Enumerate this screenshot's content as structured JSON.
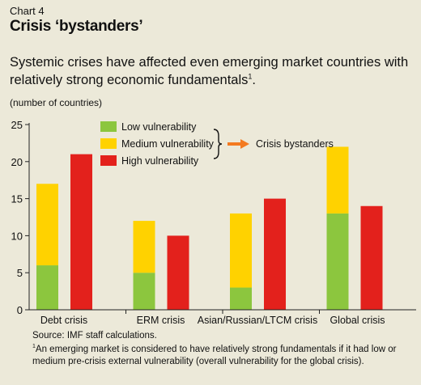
{
  "header": {
    "chart_number": "Chart 4",
    "title": "Crisis ‘bystanders’",
    "subtitle": "Systemic crises have affected even emerging market countries with relatively strong economic fundamentals",
    "subtitle_note_mark": "1",
    "subtitle_end": "."
  },
  "colors": {
    "low": "#8cc63e",
    "medium": "#ffd200",
    "high": "#e3211c",
    "arrow": "#f47a20",
    "background": "#ece9d9"
  },
  "chart_data": {
    "type": "bar",
    "stacked_groups": true,
    "categories": [
      "Debt crisis",
      "ERM crisis",
      "Asian/Russian/LTCM crisis",
      "Global crisis"
    ],
    "series": [
      {
        "name": "Low vulnerability",
        "values": [
          6,
          5,
          3,
          13
        ]
      },
      {
        "name": "Medium vulnerability",
        "values": [
          11,
          7,
          10,
          9
        ]
      },
      {
        "name": "High vulnerability",
        "values": [
          21,
          10,
          15,
          14
        ]
      }
    ],
    "bystanders_label": "Crisis bystanders",
    "ylabel": "(number of countries)",
    "ylim": [
      0,
      25
    ],
    "yticks": [
      0,
      5,
      10,
      15,
      20,
      25
    ],
    "grid": false,
    "legend_position": "top-center"
  },
  "footer": {
    "source": "Source: IMF staff calculations.",
    "footnote_mark": "1",
    "footnote": "An emerging market is considered to have relatively strong fundamentals if it had low or medium pre-crisis external vulnerability (overall vulnerability for the global crisis)."
  }
}
